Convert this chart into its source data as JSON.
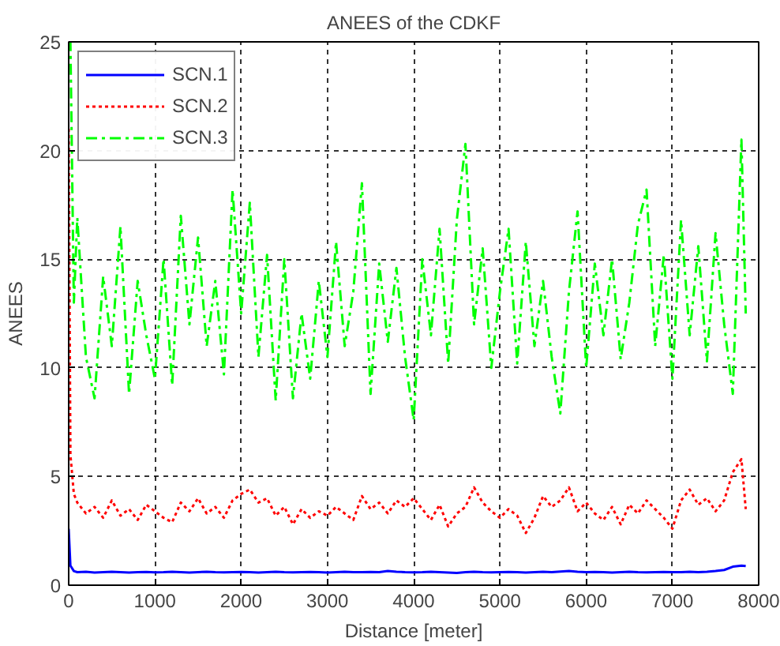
{
  "chart_data": {
    "type": "line",
    "title": "ANEES of the CDKF",
    "xlabel": "Distance [meter]",
    "ylabel": "ANEES",
    "x": [
      0,
      20,
      60,
      100,
      200,
      300,
      400,
      500,
      600,
      700,
      800,
      900,
      1000,
      1100,
      1200,
      1300,
      1400,
      1500,
      1600,
      1700,
      1800,
      1900,
      2000,
      2100,
      2200,
      2300,
      2400,
      2500,
      2600,
      2700,
      2800,
      2900,
      3000,
      3100,
      3200,
      3300,
      3400,
      3500,
      3600,
      3700,
      3800,
      3900,
      4000,
      4100,
      4200,
      4300,
      4400,
      4500,
      4600,
      4700,
      4800,
      4900,
      5000,
      5100,
      5200,
      5300,
      5400,
      5500,
      5600,
      5700,
      5800,
      5900,
      6000,
      6100,
      6200,
      6300,
      6400,
      6500,
      6600,
      6700,
      6800,
      6900,
      7000,
      7100,
      7200,
      7300,
      7400,
      7500,
      7600,
      7700,
      7800,
      7850
    ],
    "series": [
      {
        "name": "SCN.1",
        "color": "#0000ff",
        "line_style": "solid",
        "values": [
          2.6,
          0.9,
          0.65,
          0.6,
          0.62,
          0.58,
          0.6,
          0.62,
          0.6,
          0.58,
          0.6,
          0.61,
          0.59,
          0.6,
          0.62,
          0.6,
          0.58,
          0.6,
          0.62,
          0.6,
          0.59,
          0.6,
          0.61,
          0.6,
          0.58,
          0.6,
          0.62,
          0.6,
          0.59,
          0.6,
          0.61,
          0.6,
          0.58,
          0.6,
          0.62,
          0.6,
          0.6,
          0.61,
          0.6,
          0.65,
          0.62,
          0.6,
          0.59,
          0.6,
          0.62,
          0.6,
          0.58,
          0.56,
          0.6,
          0.62,
          0.6,
          0.59,
          0.6,
          0.61,
          0.6,
          0.58,
          0.6,
          0.62,
          0.6,
          0.63,
          0.65,
          0.62,
          0.6,
          0.61,
          0.6,
          0.58,
          0.6,
          0.62,
          0.6,
          0.59,
          0.6,
          0.61,
          0.6,
          0.6,
          0.62,
          0.6,
          0.62,
          0.65,
          0.7,
          0.85,
          0.9,
          0.88
        ]
      },
      {
        "name": "SCN.2",
        "color": "#ff0000",
        "line_style": "dotted",
        "values": [
          21,
          6,
          4.2,
          3.8,
          3.3,
          3.6,
          3.1,
          3.9,
          3.2,
          3.5,
          3.0,
          3.7,
          3.4,
          3.1,
          2.9,
          3.8,
          3.4,
          4.0,
          3.3,
          3.6,
          3.1,
          3.9,
          4.2,
          4.4,
          3.8,
          4.0,
          3.2,
          3.6,
          2.8,
          3.5,
          3.1,
          3.4,
          3.2,
          3.6,
          3.3,
          3.0,
          4.1,
          3.5,
          3.8,
          3.3,
          3.9,
          3.6,
          4.0,
          3.5,
          3.0,
          3.7,
          2.7,
          3.3,
          3.6,
          4.5,
          3.8,
          3.4,
          3.1,
          3.5,
          3.2,
          2.4,
          3.1,
          4.1,
          3.6,
          3.9,
          4.5,
          3.4,
          3.8,
          3.3,
          3.0,
          3.6,
          2.8,
          3.7,
          3.3,
          3.9,
          3.5,
          3.1,
          2.6,
          3.9,
          4.4,
          3.7,
          4.0,
          3.4,
          3.9,
          5.2,
          5.8,
          3.5
        ]
      },
      {
        "name": "SCN.3",
        "color": "#00ff00",
        "line_style": "dashdot",
        "values": [
          25,
          25,
          13,
          16.9,
          10.5,
          8.6,
          14.2,
          11,
          16.5,
          8.8,
          14,
          11.5,
          9.5,
          15,
          9.2,
          17,
          12,
          16,
          11,
          14,
          9.7,
          18.2,
          12.5,
          17.6,
          10.5,
          15.2,
          8.5,
          15,
          8.6,
          12.5,
          9.5,
          14,
          10.5,
          15.8,
          11,
          13.5,
          18.5,
          8.8,
          14.8,
          11.2,
          14.6,
          10.5,
          7.6,
          15,
          11.5,
          16.4,
          10.2,
          16.8,
          20.3,
          12,
          15.5,
          10,
          13.5,
          16.4,
          10.2,
          15.8,
          11,
          14,
          10.5,
          7.9,
          13.5,
          17.2,
          10,
          14.8,
          11.5,
          15,
          10.4,
          13,
          16.6,
          18.2,
          11,
          15.2,
          9.5,
          16.8,
          11.5,
          15.6,
          10.3,
          16.2,
          12,
          8.8,
          20.5,
          12.5
        ]
      }
    ],
    "xlim": [
      0,
      8000
    ],
    "ylim": [
      0,
      25
    ],
    "xticks": [
      0,
      1000,
      2000,
      3000,
      4000,
      5000,
      6000,
      7000,
      8000
    ],
    "yticks": [
      0,
      5,
      10,
      15,
      20,
      25
    ],
    "grid": true,
    "legend": "top left"
  }
}
